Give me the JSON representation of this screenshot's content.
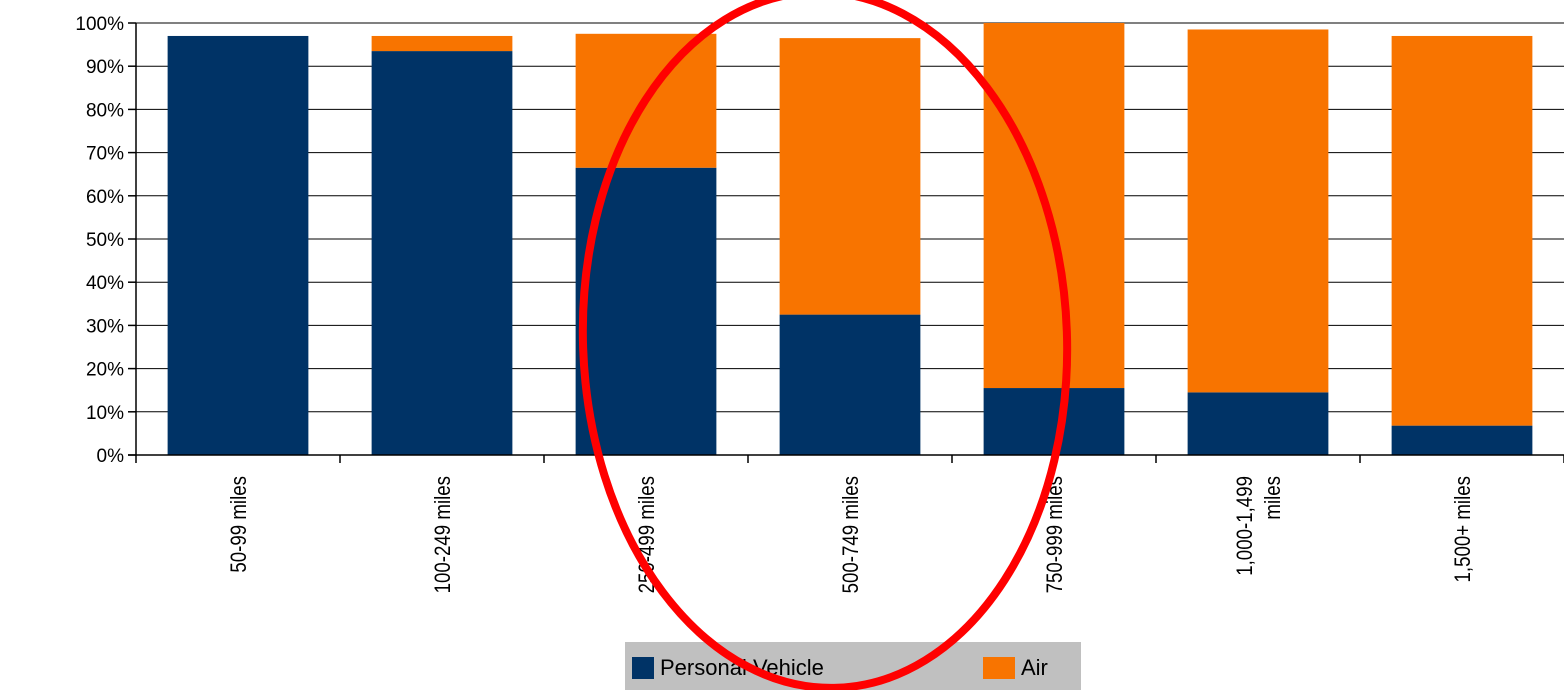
{
  "chart_data": {
    "type": "bar",
    "stacked": true,
    "categories": [
      [
        "50-99 miles"
      ],
      [
        "100-249 miles"
      ],
      [
        "250-499 miles"
      ],
      [
        "500-749 miles"
      ],
      [
        "750-999 miles"
      ],
      [
        "1,000-1,499",
        "miles"
      ],
      [
        "1,500+ miles"
      ]
    ],
    "series": [
      {
        "name": "Personal Vehicle",
        "color": "#003366",
        "values": [
          97,
          93.5,
          66.5,
          32.5,
          15.5,
          14.5,
          6.8
        ]
      },
      {
        "name": "Air",
        "color": "#F87400",
        "values": [
          0,
          3.5,
          31,
          64,
          84.5,
          84,
          90.2
        ]
      }
    ],
    "ylim": [
      0,
      100
    ],
    "yticks": [
      "0%",
      "10%",
      "20%",
      "30%",
      "40%",
      "50%",
      "60%",
      "70%",
      "80%",
      "90%",
      "100%"
    ],
    "grid": true,
    "legend": "bottom",
    "annotation": {
      "type": "ellipse",
      "color": "#FF0000",
      "around_categories": [
        "250-499 miles",
        "500-749 miles",
        "750-999 miles"
      ]
    }
  }
}
